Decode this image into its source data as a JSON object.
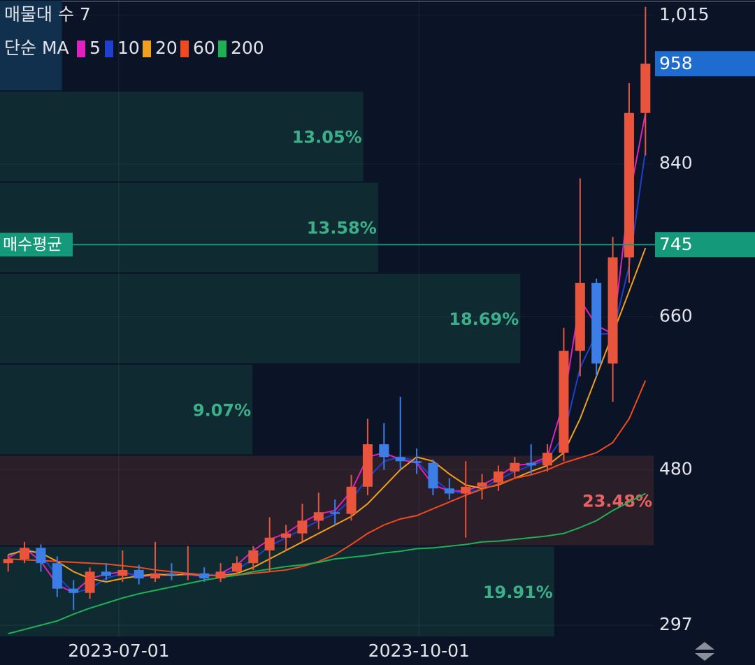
{
  "chart_data": {
    "type": "candlestick",
    "indicator_label": "매물대 수 7",
    "ma_label": "단순 MA",
    "ylim": [
      283,
      1033
    ],
    "yticks": [
      297,
      480,
      660,
      840,
      {
        "value": 1015,
        "label": "1,015"
      }
    ],
    "xlim": [
      0,
      40
    ],
    "xticks": [
      {
        "value": 7.27,
        "label": "2023-07-01"
      },
      {
        "value": 25.64,
        "label": "2023-10-01"
      }
    ],
    "grid": true,
    "up_color": "#e8553c",
    "down_color": "#3d7ee6",
    "candles": {
      "open": [
        370,
        375,
        388,
        370,
        340,
        335,
        360,
        355,
        362,
        352,
        358,
        356,
        358,
        352,
        360,
        370,
        385,
        400,
        405,
        420,
        430,
        428,
        460,
        510,
        495,
        490,
        488,
        458,
        452,
        460,
        465,
        478,
        488,
        485,
        500,
        620,
        700,
        605,
        730,
        900
      ],
      "high": [
        380,
        395,
        392,
        378,
        350,
        365,
        370,
        385,
        368,
        395,
        370,
        390,
        365,
        370,
        378,
        390,
        424,
        415,
        440,
        453,
        445,
        474,
        540,
        535,
        566,
        505,
        492,
        470,
        490,
        475,
        485,
        495,
        510,
        510,
        647,
        823,
        705,
        754,
        935,
        1025
      ],
      "low": [
        360,
        370,
        360,
        330,
        315,
        328,
        350,
        348,
        345,
        348,
        350,
        350,
        348,
        348,
        355,
        362,
        360,
        385,
        395,
        410,
        415,
        420,
        450,
        480,
        480,
        475,
        450,
        445,
        400,
        445,
        455,
        470,
        475,
        478,
        490,
        590,
        590,
        560,
        700,
        850
      ],
      "close": [
        375,
        388,
        370,
        340,
        335,
        360,
        355,
        362,
        352,
        358,
        356,
        358,
        352,
        360,
        370,
        385,
        400,
        405,
        420,
        430,
        428,
        460,
        510,
        495,
        490,
        488,
        458,
        452,
        460,
        465,
        478,
        488,
        485,
        500,
        620,
        700,
        605,
        730,
        900,
        958
      ]
    },
    "series": [
      {
        "name": "5",
        "color": "#e020c0",
        "values": [
          376,
          388,
          372,
          345,
          335,
          352,
          357,
          360,
          354,
          356,
          356,
          357,
          354,
          358,
          368,
          385,
          398,
          405,
          418,
          428,
          432,
          455,
          495,
          500,
          492,
          488,
          462,
          455,
          455,
          462,
          472,
          485,
          487,
          495,
          560,
          680,
          650,
          640,
          800,
          900
        ]
      },
      {
        "name": "10",
        "color": "#1f3fd0",
        "values": [
          378,
          388,
          380,
          355,
          335,
          340,
          352,
          358,
          356,
          356,
          357,
          356,
          356,
          357,
          362,
          375,
          390,
          400,
          410,
          420,
          428,
          445,
          470,
          490,
          495,
          490,
          470,
          455,
          452,
          458,
          468,
          478,
          485,
          492,
          520,
          600,
          640,
          640,
          720,
          856
        ]
      },
      {
        "name": "20",
        "color": "#f0a020",
        "values": [
          380,
          385,
          382,
          372,
          360,
          352,
          348,
          352,
          355,
          357,
          356,
          357,
          356,
          355,
          358,
          365,
          375,
          385,
          395,
          405,
          415,
          425,
          440,
          460,
          480,
          495,
          490,
          475,
          462,
          458,
          462,
          470,
          478,
          485,
          500,
          540,
          590,
          640,
          690,
          741
        ]
      },
      {
        "name": "60",
        "color": "#f04a20",
        "values": [
          375,
          374,
          373,
          372,
          371,
          370,
          369,
          367,
          365,
          362,
          360,
          358,
          356,
          355,
          356,
          358,
          360,
          362,
          366,
          372,
          380,
          392,
          405,
          415,
          422,
          426,
          434,
          442,
          450,
          457,
          463,
          470,
          474,
          480,
          488,
          494,
          500,
          512,
          540,
          585
        ]
      },
      {
        "name": "200",
        "color": "#1fb055",
        "values": [
          287,
          292,
          297,
          302,
          310,
          317,
          323,
          329,
          334,
          338,
          342,
          346,
          350,
          353,
          356,
          360,
          363,
          366,
          368,
          371,
          375,
          377,
          379,
          382,
          384,
          387,
          388,
          390,
          392,
          395,
          396,
          398,
          400,
          402,
          405,
          412,
          420,
          432,
          442,
          452
        ]
      }
    ],
    "volume_profile": {
      "values": [
        2.22,
        13.05,
        13.58,
        18.69,
        9.07,
        23.48,
        19.91
      ],
      "value_labels": [
        null,
        "13.05%",
        "13.58%",
        "18.69%",
        "9.07%",
        "23.48%",
        "19.91%"
      ],
      "color": "#0f2b31",
      "max_color": "#2a1e29",
      "current_color": "#11304d",
      "label_color": "#3cae8a",
      "max_label_color": "#e86262"
    },
    "buy_average": {
      "label": "매수평균",
      "value": 745,
      "color": "#14997a"
    },
    "last_price_color": "#1f6cd0"
  }
}
